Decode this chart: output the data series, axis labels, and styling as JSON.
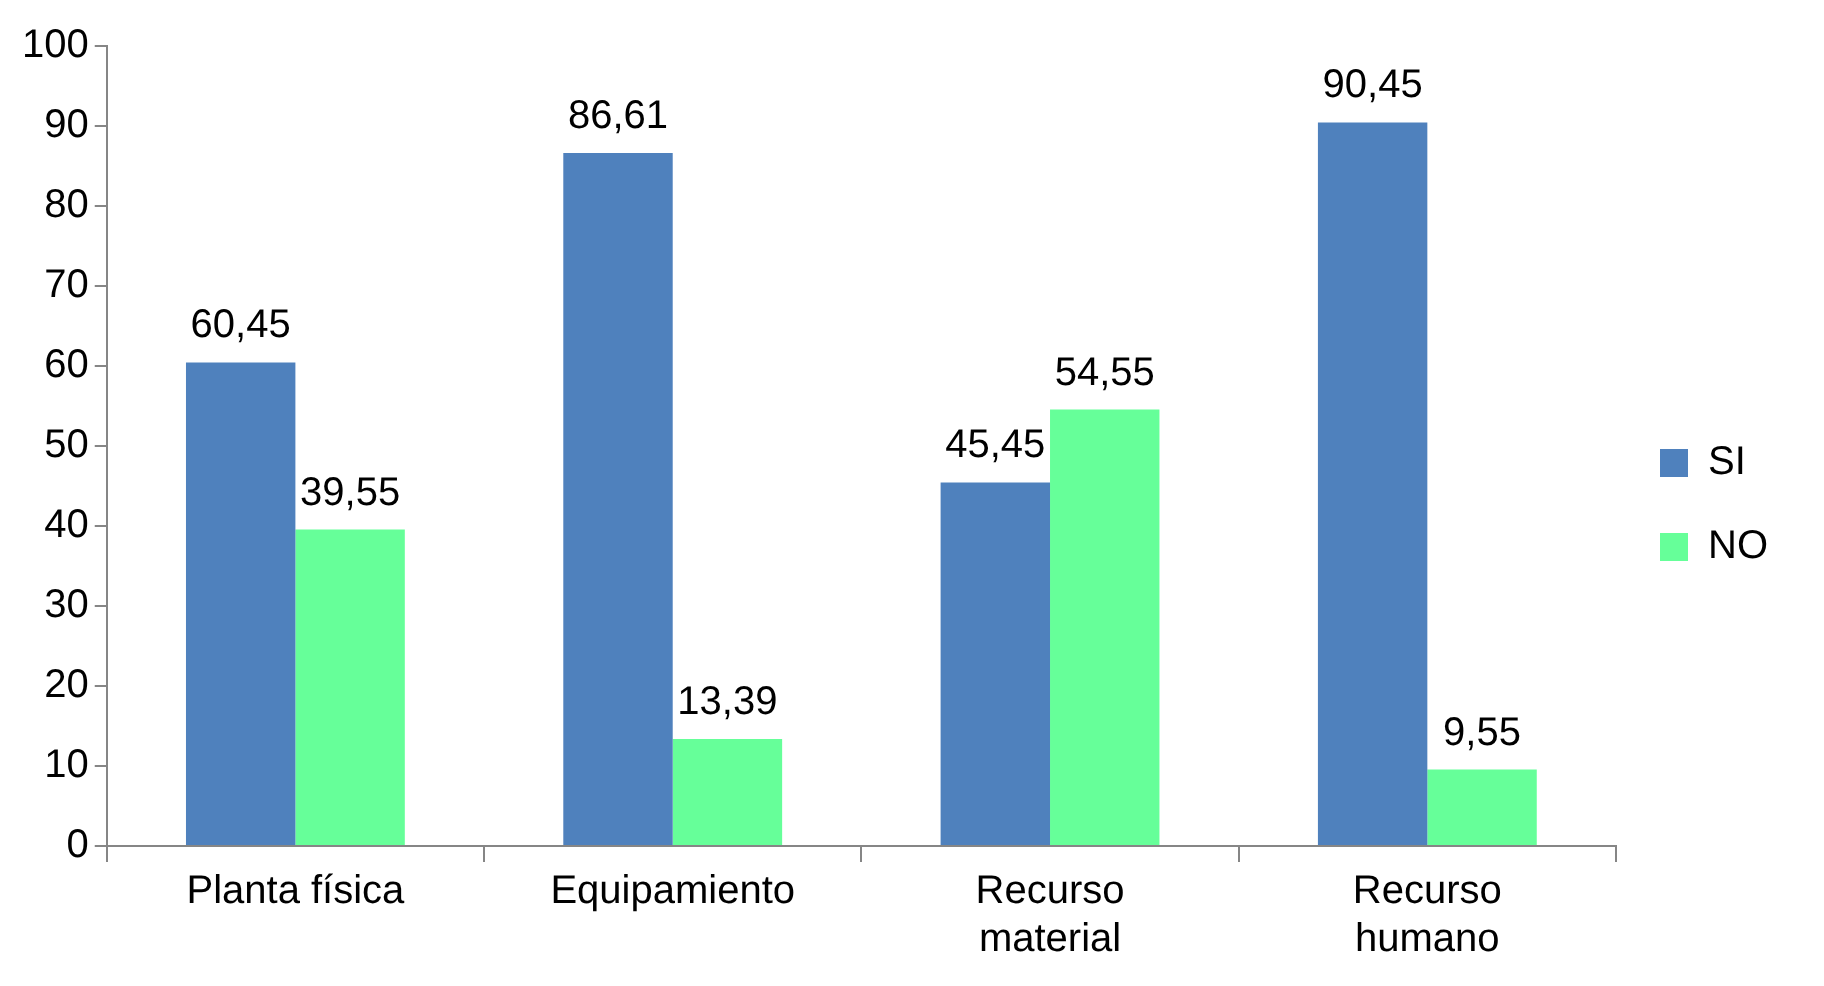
{
  "chart_data": {
    "type": "bar",
    "categories": [
      "Planta física",
      "Equipamiento",
      "Recurso material",
      "Recurso humano"
    ],
    "series": [
      {
        "name": "SI",
        "color": "#4f81bd",
        "values": [
          60.45,
          86.61,
          45.45,
          90.45
        ],
        "value_labels": [
          "60,45",
          "86,61",
          "45,45",
          "90,45"
        ]
      },
      {
        "name": "NO",
        "color": "#66ff99",
        "values": [
          39.55,
          13.39,
          54.55,
          9.55
        ],
        "value_labels": [
          "39,55",
          "13,39",
          "54,55",
          "9,55"
        ]
      }
    ],
    "ylim": [
      0,
      100
    ],
    "yticks": [
      0,
      10,
      20,
      30,
      40,
      50,
      60,
      70,
      80,
      90,
      100
    ],
    "grid": false,
    "legend": "right"
  }
}
